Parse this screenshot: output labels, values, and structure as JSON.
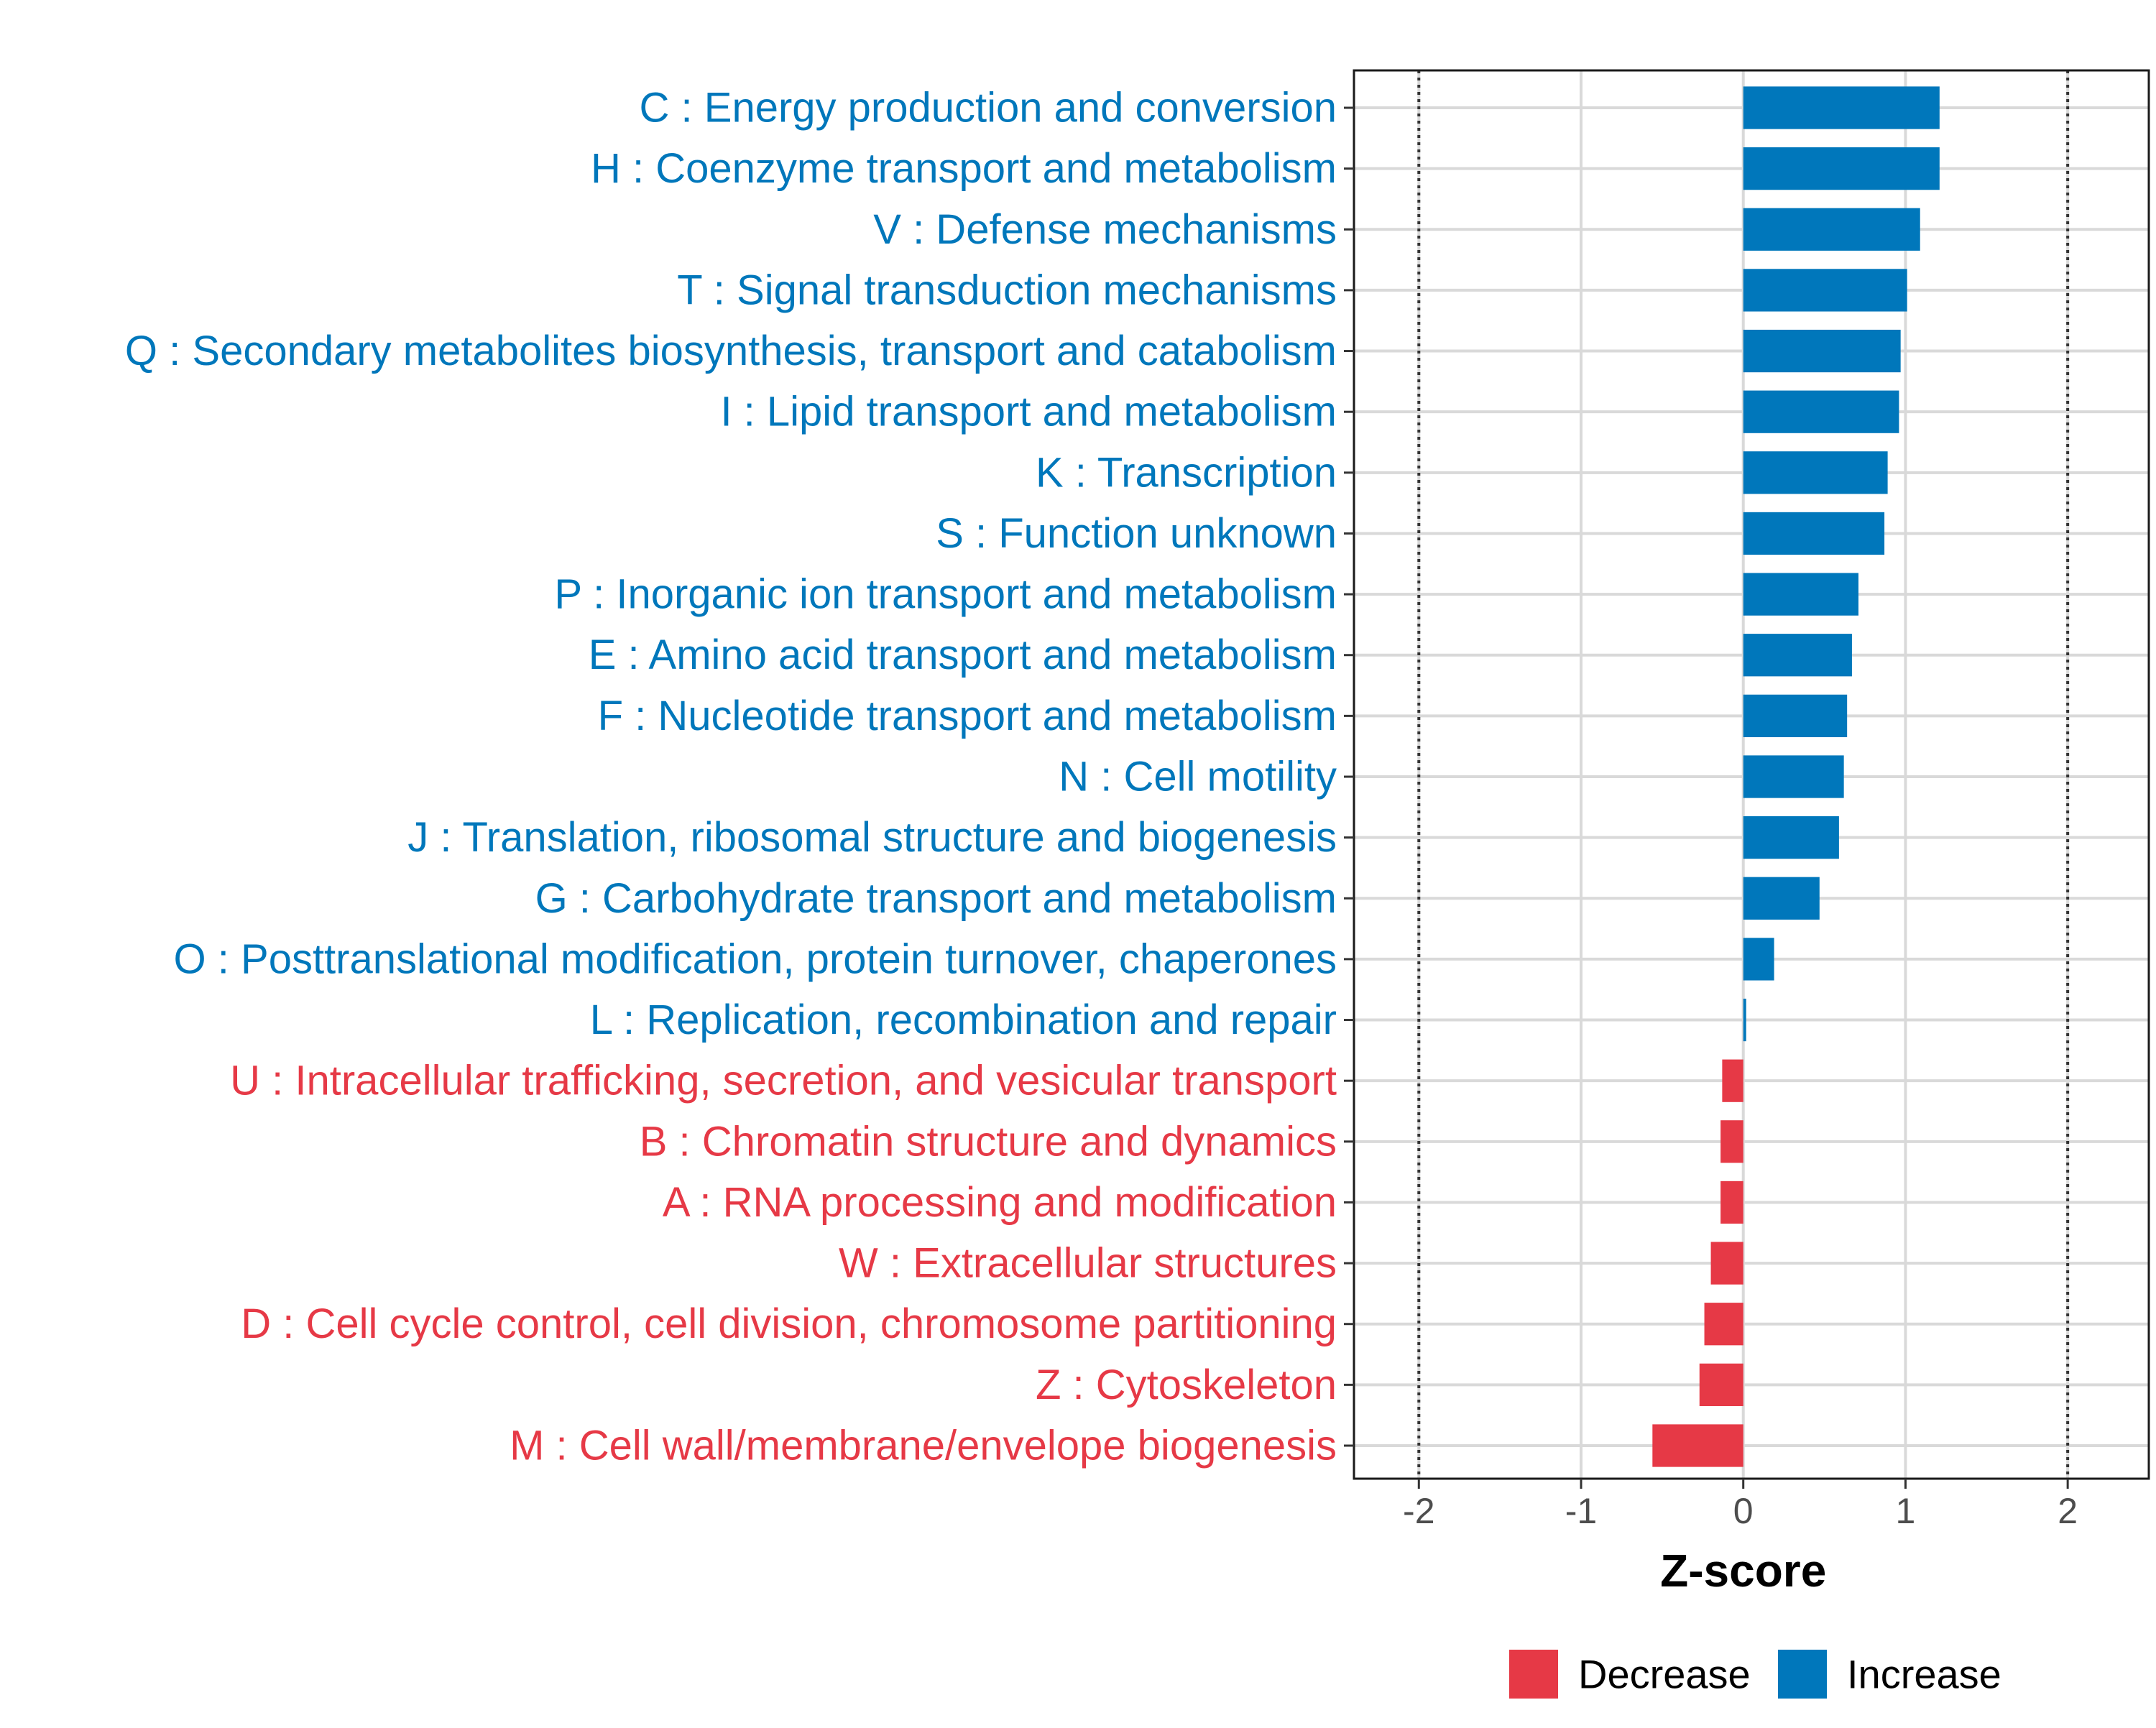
{
  "chart_data": {
    "type": "bar",
    "orientation": "horizontal",
    "title": "",
    "xlabel": "Z-score",
    "ylabel": "",
    "xlim": [
      -2.4,
      2.5
    ],
    "xticks": [
      -2,
      -1,
      0,
      1,
      2
    ],
    "xtick_labels": [
      "-2",
      "-1",
      "0",
      "1",
      "2"
    ],
    "reference_lines": [
      -2,
      2
    ],
    "grid": true,
    "legend_position": "bottom",
    "colors": {
      "Increase": "#0077bb",
      "Decrease": "#e63946"
    },
    "legend": [
      {
        "name": "Decrease",
        "color": "#e63946"
      },
      {
        "name": "Increase",
        "color": "#0077bb"
      }
    ],
    "categories": [
      "C : Energy production and conversion",
      "H : Coenzyme transport and metabolism",
      "V : Defense mechanisms",
      "T : Signal transduction mechanisms",
      "Q : Secondary metabolites biosynthesis, transport and catabolism",
      "I : Lipid transport and metabolism",
      "K : Transcription",
      "S : Function unknown",
      "P : Inorganic ion transport and metabolism",
      "E : Amino acid transport and metabolism",
      "F : Nucleotide transport and metabolism",
      "N : Cell motility",
      "J : Translation, ribosomal structure and biogenesis",
      "G : Carbohydrate transport and metabolism",
      "O : Posttranslational modification, protein turnover, chaperones",
      "L : Replication, recombination and repair",
      "U : Intracellular trafficking, secretion, and vesicular transport",
      "B : Chromatin structure and dynamics",
      "A : RNA processing and modification",
      "W : Extracellular structures",
      "D : Cell cycle control, cell division, chromosome partitioning",
      "Z : Cytoskeleton",
      "M : Cell wall/membrane/envelope biogenesis"
    ],
    "values": [
      1.21,
      1.21,
      1.09,
      1.01,
      0.97,
      0.96,
      0.89,
      0.87,
      0.71,
      0.67,
      0.64,
      0.62,
      0.59,
      0.47,
      0.19,
      0.01,
      -0.13,
      -0.14,
      -0.14,
      -0.2,
      -0.24,
      -0.27,
      -0.56
    ],
    "groups": [
      "Increase",
      "Increase",
      "Increase",
      "Increase",
      "Increase",
      "Increase",
      "Increase",
      "Increase",
      "Increase",
      "Increase",
      "Increase",
      "Increase",
      "Increase",
      "Increase",
      "Increase",
      "Increase",
      "Decrease",
      "Decrease",
      "Decrease",
      "Decrease",
      "Decrease",
      "Decrease",
      "Decrease"
    ]
  }
}
